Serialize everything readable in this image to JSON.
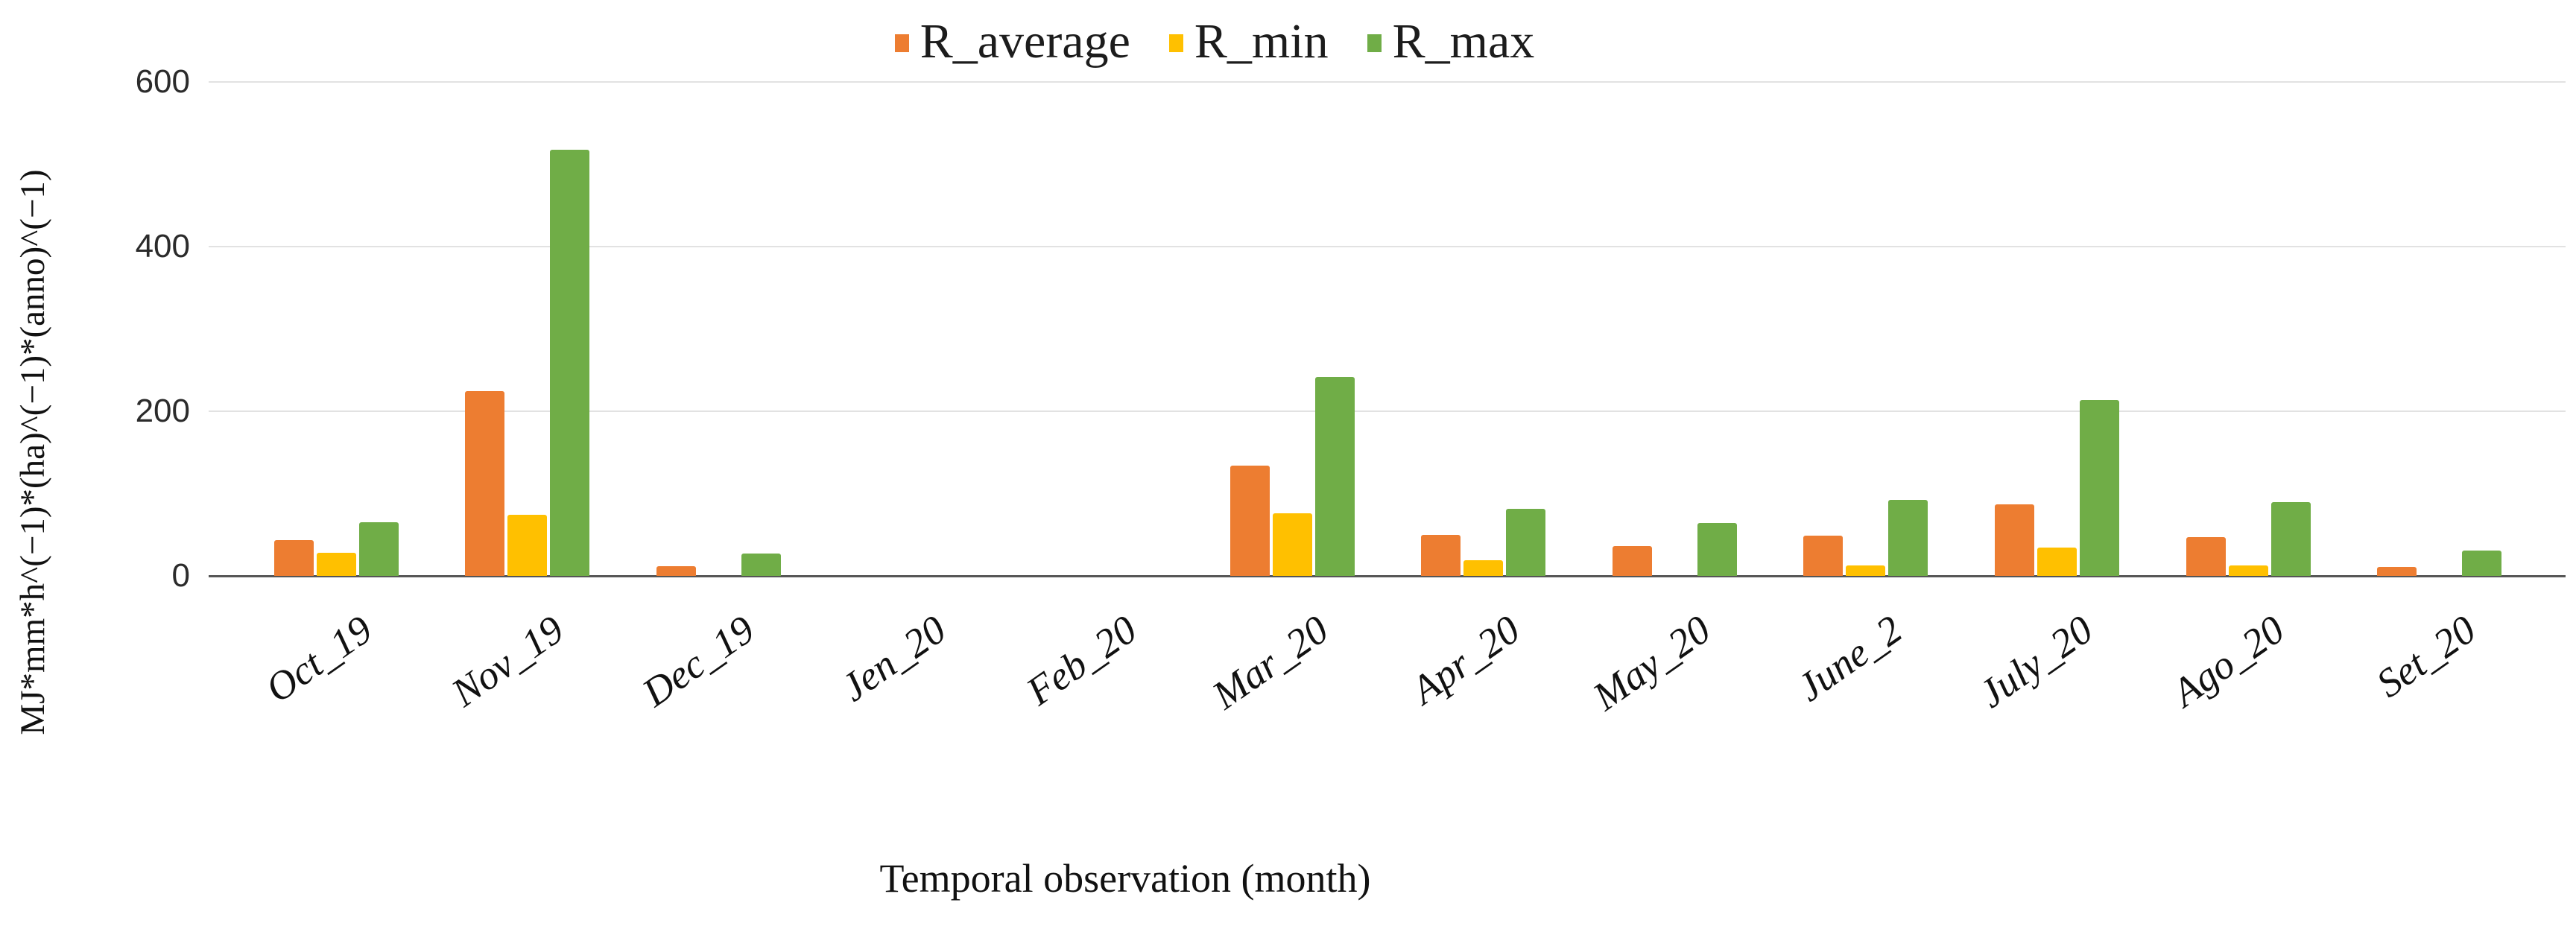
{
  "figure": {
    "background": "#ffffff",
    "grid_color": "#e2e2e2",
    "axis_line_color": "#565656",
    "text_color": "#1a1a1a"
  },
  "chart_data": {
    "type": "bar",
    "title": "",
    "xlabel": "Temporal observation (month)",
    "ylabel": "MJ*mm*h^(−1)*(ha)^(−1)*(anno)^(−1)",
    "categories": [
      "Oct_19",
      "Nov_19",
      "Dec_19",
      "Jen_20",
      "Feb_20",
      "Mar_20",
      "Apr_20",
      "May_20",
      "June_2",
      "July_20",
      "Ago_20",
      "Set_20"
    ],
    "series": [
      {
        "name": "R_average",
        "color": "#ED7D31",
        "values": [
          43,
          224,
          12,
          0,
          0,
          134,
          50,
          36,
          49,
          87,
          47,
          11
        ]
      },
      {
        "name": "R_min",
        "color": "#FFC000",
        "values": [
          28,
          74,
          0,
          0,
          0,
          76,
          19,
          0,
          13,
          34,
          13,
          0
        ]
      },
      {
        "name": "R_max",
        "color": "#70AD47",
        "values": [
          65,
          518,
          27,
          0,
          0,
          242,
          81,
          64,
          92,
          214,
          90,
          31
        ]
      }
    ],
    "ylim": [
      0,
      600
    ],
    "yticks": [
      0,
      200,
      400,
      600
    ],
    "grid": true,
    "legend_position": "top-center"
  }
}
